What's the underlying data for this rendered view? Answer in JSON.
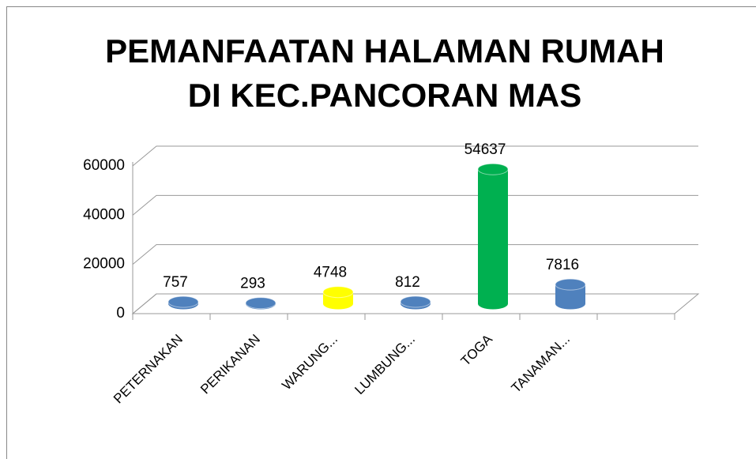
{
  "chart_data": {
    "type": "bar3d",
    "title": [
      "PEMANFAATAN HALAMAN RUMAH",
      "DI KEC.PANCORAN MAS"
    ],
    "categories": [
      "PETERNAKAN",
      "PERIKANAN",
      "WARUNG...",
      "LUMBUNG...",
      "TOGA",
      "TANAMAN...",
      null
    ],
    "values": [
      757,
      293,
      4748,
      812,
      54637,
      7816,
      null
    ],
    "colors": [
      "#4f81bd",
      "#4f81bd",
      "#ffff00",
      "#4f81bd",
      "#00b050",
      "#4f81bd",
      "#4f81bd"
    ],
    "ylim": [
      0,
      60000
    ],
    "yticks": [
      0,
      20000,
      40000,
      60000
    ],
    "grid": true
  }
}
